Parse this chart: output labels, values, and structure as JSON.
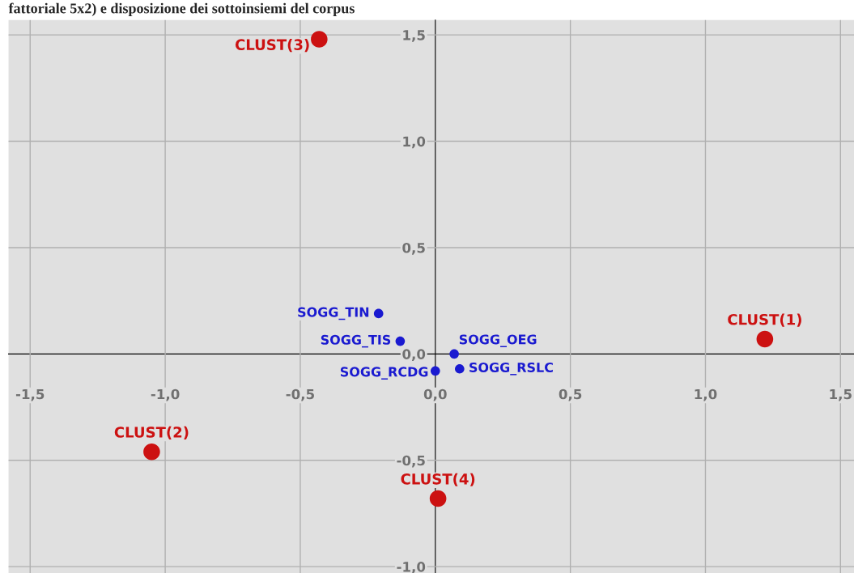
{
  "chart_data": {
    "type": "scatter",
    "title": "fattoriale 5x2) e disposizione dei sottoinsiemi del corpus",
    "series": [
      {
        "color": "#cc1111",
        "x": [
          -0.43,
          1.22,
          -1.05,
          0.01
        ],
        "values": [
          1.48,
          0.07,
          -0.46,
          -0.68
        ]
      },
      {
        "color": "#1a1ad0",
        "x": [
          -0.21,
          -0.13,
          0.07,
          0.09,
          0.0
        ],
        "values": [
          0.19,
          0.06,
          0.0,
          -0.07,
          -0.08
        ]
      }
    ],
    "annotations": [
      {
        "text": "CLUST(3)",
        "x": -0.43,
        "y": 1.48
      },
      {
        "text": "CLUST(1)",
        "x": 1.22,
        "y": 0.07
      },
      {
        "text": "CLUST(2)",
        "x": -1.05,
        "y": -0.46
      },
      {
        "text": "CLUST(4)",
        "x": 0.01,
        "y": -0.68
      },
      {
        "text": "SOGG_TIN",
        "x": -0.21,
        "y": 0.19
      },
      {
        "text": "SOGG_TIS",
        "x": -0.13,
        "y": 0.06
      },
      {
        "text": "SOGG_OEG",
        "x": 0.07,
        "y": 0.0
      },
      {
        "text": "SOGG_RSLC",
        "x": 0.09,
        "y": -0.07
      },
      {
        "text": "SOGG_RCDG",
        "x": 0.0,
        "y": -0.08
      }
    ],
    "xlim": [
      -1.58,
      1.55
    ],
    "ylim": [
      -1.03,
      1.57
    ],
    "xticks": [
      {
        "value": -1.5,
        "label": "-1,5"
      },
      {
        "value": -1.0,
        "label": "-1,0"
      },
      {
        "value": -0.5,
        "label": "-0,5"
      },
      {
        "value": 0.0,
        "label": "0,0"
      },
      {
        "value": 0.5,
        "label": "0,5"
      },
      {
        "value": 1.0,
        "label": "1,0"
      },
      {
        "value": 1.5,
        "label": "1,5"
      }
    ],
    "yticks": [
      {
        "value": -1.0,
        "label": "-1,0"
      },
      {
        "value": -0.5,
        "label": "-0,5"
      },
      {
        "value": 0.0,
        "label": "0,0"
      },
      {
        "value": 0.5,
        "label": "0,5"
      },
      {
        "value": 1.0,
        "label": "1,0"
      },
      {
        "value": 1.5,
        "label": "1,5"
      }
    ],
    "grid": true,
    "marker": "circle",
    "legend": false
  }
}
